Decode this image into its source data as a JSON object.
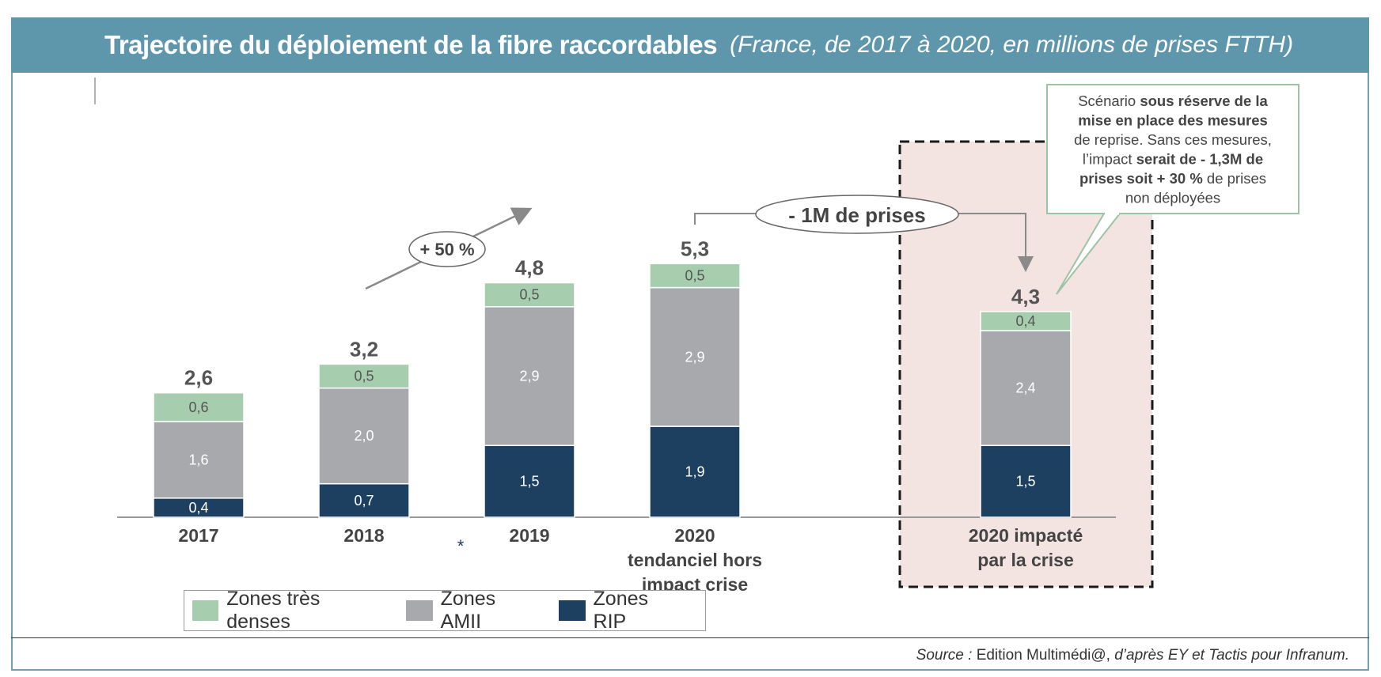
{
  "title": {
    "main": "Trajectoire du déploiement de la fibre raccordables",
    "sub": "(France, de 2017 à 2020, en millions de prises FTTH)"
  },
  "chart_data": {
    "type": "bar",
    "stacked": true,
    "categories": [
      "2017",
      "2018",
      "2019",
      "2020 tendanciel hors impact crise",
      "2020 impacté par la crise"
    ],
    "category_lines": [
      [
        "2017"
      ],
      [
        "2018"
      ],
      [
        "2019"
      ],
      [
        "2020",
        "tendanciel hors",
        "impact crise"
      ],
      [
        "2020 impacté",
        "par la crise"
      ]
    ],
    "series": [
      {
        "name": "Zones RIP",
        "values": [
          0.4,
          0.7,
          1.5,
          1.9,
          1.5
        ],
        "labels": [
          "0,4",
          "0,7",
          "1,5",
          "1,9",
          "1,5"
        ],
        "color": "#1d3f60"
      },
      {
        "name": "Zones AMII",
        "values": [
          1.6,
          2.0,
          2.9,
          2.9,
          2.4
        ],
        "labels": [
          "1,6",
          "2,0",
          "2,9",
          "2,9",
          "2,4"
        ],
        "color": "#a7a9ac"
      },
      {
        "name": "Zones très denses",
        "values": [
          0.6,
          0.5,
          0.5,
          0.5,
          0.4
        ],
        "labels": [
          "0,6",
          "0,5",
          "0,5",
          "0,5",
          "0,4"
        ],
        "color": "#a6ceae"
      }
    ],
    "totals": [
      "2,6",
      "3,2",
      "4,8",
      "5,3",
      "4,3"
    ],
    "ylim": [
      0,
      5.3
    ],
    "legend_position": "bottom-left",
    "annotations": {
      "growth": "+ 50 %",
      "reduction": "- 1M de prises",
      "asterisk": "*",
      "scenario_lines": [
        [
          {
            "t": "Scénario ",
            "b": false
          },
          {
            "t": "sous réserve de la",
            "b": true
          }
        ],
        [
          {
            "t": "mise en place des mesures",
            "b": true
          }
        ],
        [
          {
            "t": "de reprise. Sans ces mesures,",
            "b": false
          }
        ],
        [
          {
            "t": "l’impact ",
            "b": false
          },
          {
            "t": "serait de - 1,3M de",
            "b": true
          }
        ],
        [
          {
            "t": "prises soit + 30 %",
            "b": true
          },
          {
            "t": " de prises",
            "b": false
          }
        ],
        [
          {
            "t": "non déployées",
            "b": false
          }
        ]
      ]
    }
  },
  "legend": [
    {
      "label": "Zones très denses",
      "color": "#a6ceae"
    },
    {
      "label": "Zones AMII",
      "color": "#a7a9ac"
    },
    {
      "label": "Zones RIP",
      "color": "#1d3f60"
    }
  ],
  "source": {
    "prefix": "Source : ",
    "middle": "Edition Multimédi@, ",
    "suffix": "d’après EY et Tactis pour Infranum."
  }
}
